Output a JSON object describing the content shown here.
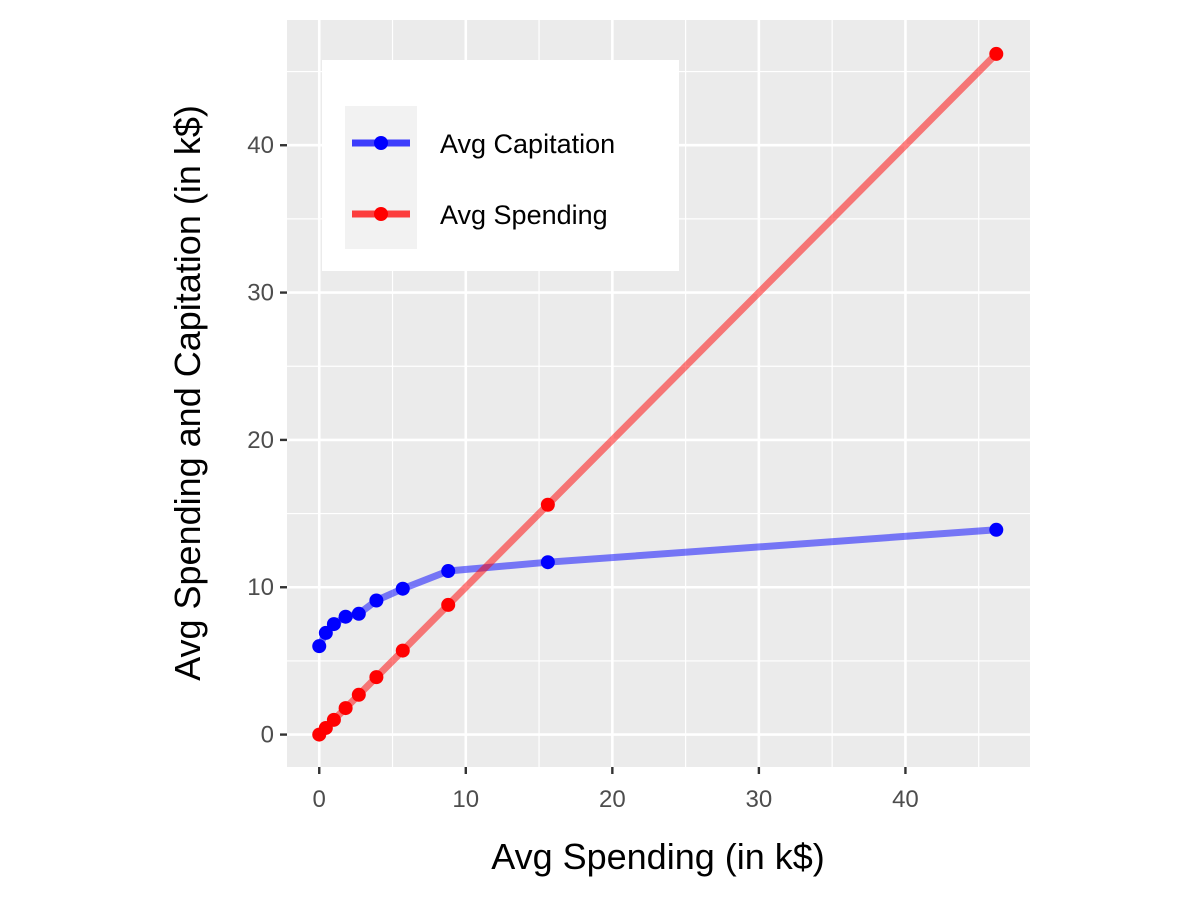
{
  "chart_data": {
    "type": "line",
    "title": "",
    "xlabel": "Avg Spending (in k$)",
    "ylabel": "Avg Spending and Capitation (in k$)",
    "xlim": [
      -2.2,
      48.5
    ],
    "ylim": [
      -2.2,
      48.5
    ],
    "x_ticks": [
      0,
      10,
      20,
      30,
      40
    ],
    "y_ticks": [
      0,
      10,
      20,
      30,
      40
    ],
    "x_minor_ticks": [
      5,
      15,
      25,
      35,
      45
    ],
    "y_minor_ticks": [
      5,
      15,
      25,
      35,
      45
    ],
    "grid": true,
    "legend": "top-left",
    "x": [
      0,
      0.45,
      1.0,
      1.8,
      2.7,
      3.9,
      5.7,
      8.8,
      15.6,
      46.2
    ],
    "series": [
      {
        "name": "Avg Capitation",
        "color": "#0000ff",
        "values": [
          6.0,
          6.9,
          7.5,
          8.0,
          8.2,
          9.1,
          9.9,
          11.1,
          11.7,
          13.9
        ]
      },
      {
        "name": "Avg Spending",
        "color": "#ff0000",
        "values": [
          0,
          0.45,
          1.0,
          1.8,
          2.7,
          3.9,
          5.7,
          8.8,
          15.6,
          46.2
        ]
      }
    ]
  }
}
